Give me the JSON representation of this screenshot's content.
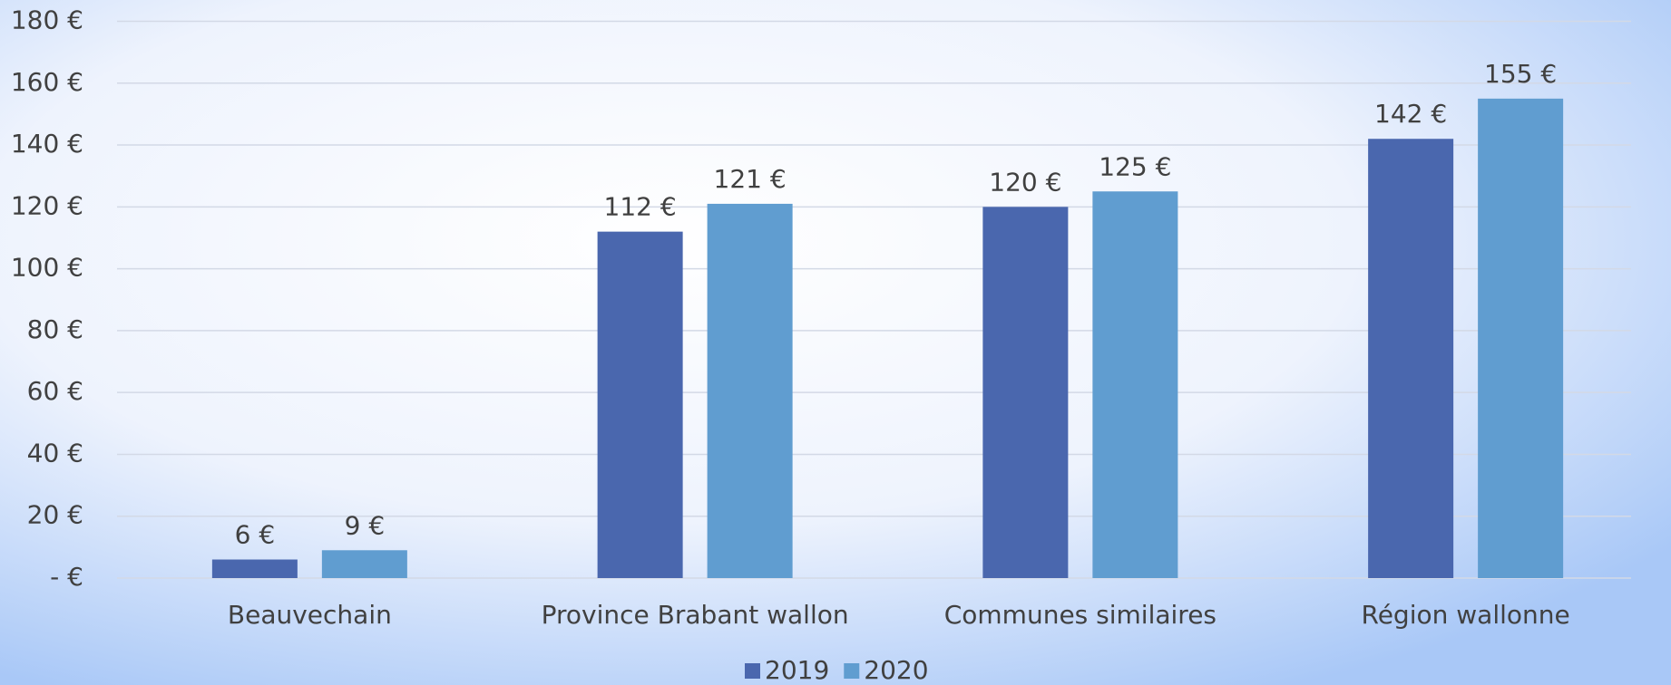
{
  "chart_data": {
    "type": "bar",
    "categories": [
      "Beauvechain",
      "Province Brabant wallon",
      "Communes similaires",
      "Région wallonne"
    ],
    "series": [
      {
        "name": "2019",
        "color": "#4a67ae",
        "values": [
          6,
          112,
          120,
          142
        ],
        "value_labels": [
          "6 €",
          "112 €",
          "120 €",
          "142 €"
        ]
      },
      {
        "name": "2020",
        "color": "#609dd0",
        "values": [
          9,
          121,
          125,
          155
        ],
        "value_labels": [
          "9 €",
          "121 €",
          "125 €",
          "155 €"
        ]
      }
    ],
    "ylim": [
      0,
      180
    ],
    "yticks": [
      {
        "value": 0,
        "label": "-   €"
      },
      {
        "value": 20,
        "label": "20 €"
      },
      {
        "value": 40,
        "label": "40 €"
      },
      {
        "value": 60,
        "label": "60 €"
      },
      {
        "value": 80,
        "label": "80 €"
      },
      {
        "value": 100,
        "label": "100 €"
      },
      {
        "value": 120,
        "label": "120 €"
      },
      {
        "value": 140,
        "label": "140 €"
      },
      {
        "value": 160,
        "label": "160 €"
      },
      {
        "value": 180,
        "label": "180 €"
      }
    ],
    "grid": true,
    "legend": "bottom"
  }
}
